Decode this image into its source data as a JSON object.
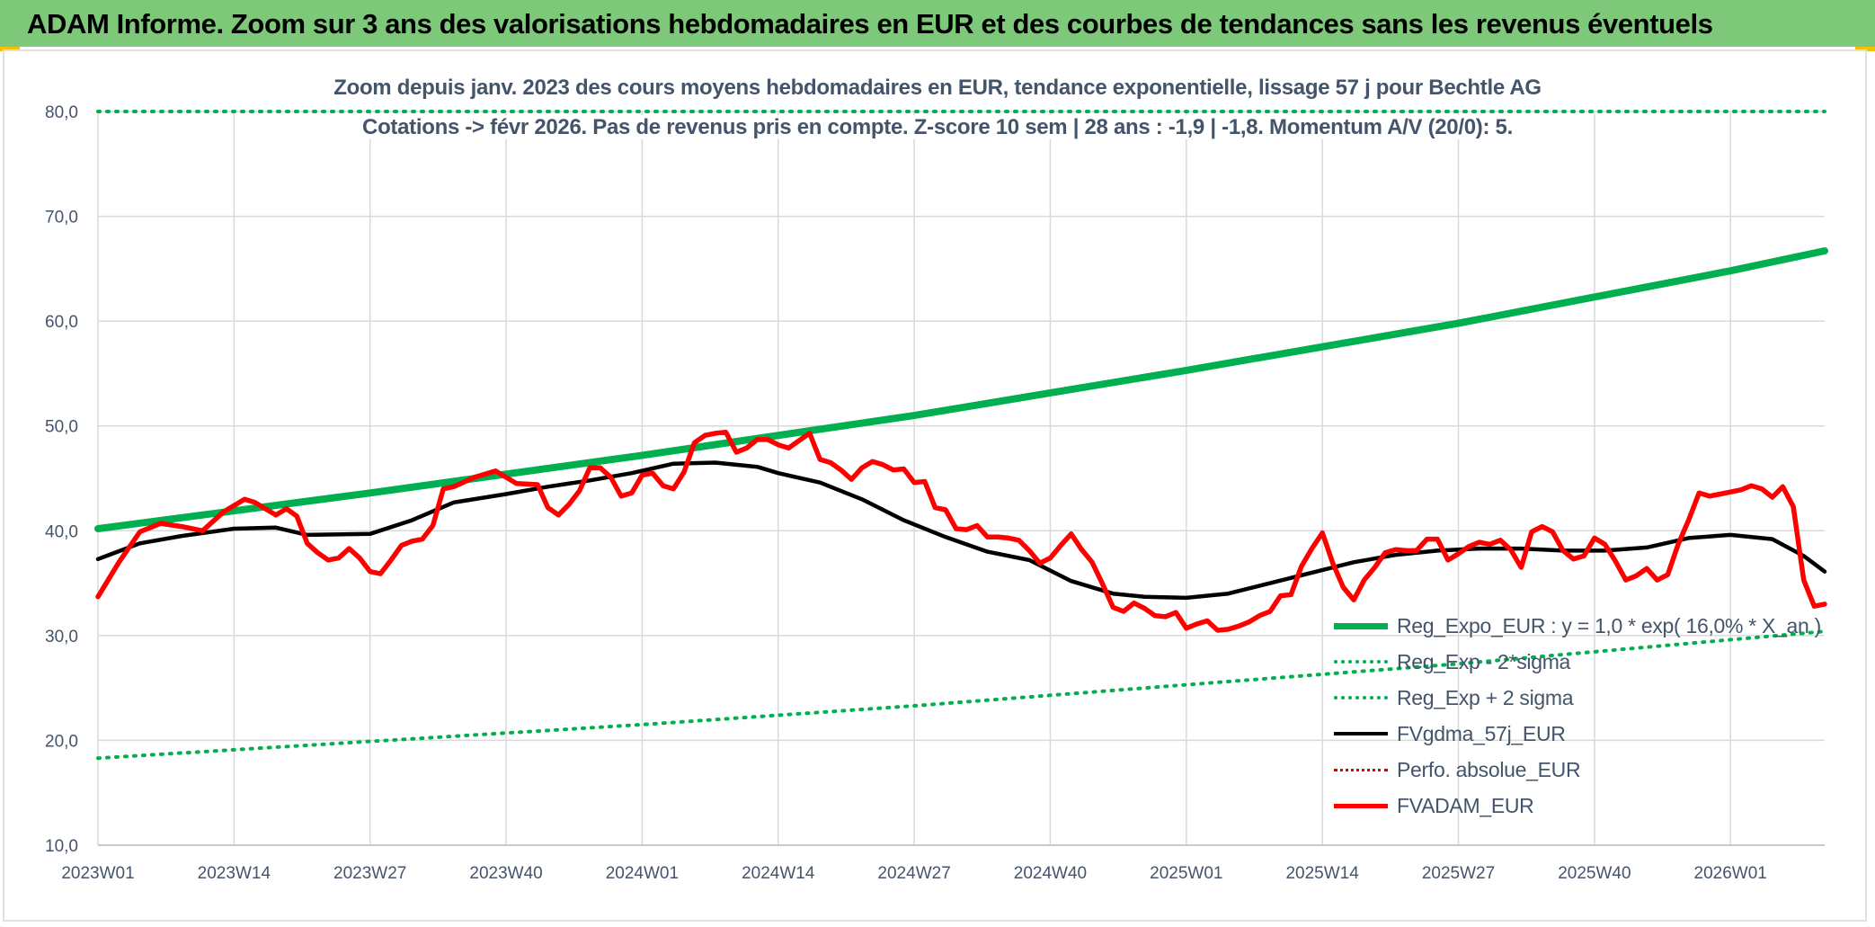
{
  "banner": {
    "title": "ADAM Informe. Zoom sur 3 ans des valorisations hebdomadaires en EUR et des courbes de tendances sans les revenus éventuels"
  },
  "colors": {
    "banner_bg": "#7ec87a",
    "reg_expo": "#00b050",
    "sigma_bands": "#00b050",
    "fvgdma": "#000000",
    "perfo": "#e00000",
    "fvadam": "#ff0000",
    "axis_text": "#44546a",
    "grid": "#d9d9d9"
  },
  "chart_data": {
    "type": "line",
    "title_lines": [
      "Zoom depuis janv. 2023 des cours moyens hebdomadaires en EUR, tendance exponentielle, lissage 57 j pour Bechtle AG",
      "Cotations -> févr 2026. Pas de revenus pris en compte. Z-score 10 sem | 28 ans : -1,9 | -1,8. Momentum A/V (20/0): 5."
    ],
    "xlabel": "",
    "ylabel": "",
    "ylim": [
      10,
      80
    ],
    "yticks": [
      "10,0",
      "20,0",
      "30,0",
      "40,0",
      "50,0",
      "60,0",
      "70,0",
      "80,0"
    ],
    "xticks": [
      "2023W01",
      "2023W14",
      "2023W27",
      "2023W40",
      "2024W01",
      "2024W14",
      "2024W27",
      "2024W40",
      "2025W01",
      "2025W14",
      "2025W27",
      "2025W40",
      "2026W01"
    ],
    "x_week_range": [
      0,
      165
    ],
    "grid": true,
    "legend_position": "bottom-right",
    "legend": [
      "Reg_Expo_EUR : y = 1,0 * exp( 16,0% *  X_an )",
      "Reg_Exp - 2*sigma",
      "Reg_Exp + 2 sigma",
      "FVgdma_57j_EUR",
      "Perfo. absolue_EUR",
      "FVADAM_EUR"
    ],
    "series": [
      {
        "name": "Reg_Expo_EUR : y = 1,0 * exp( 16,0% *  X_an )",
        "style": "solid-thick",
        "x": [
          0,
          26,
          52,
          78,
          104,
          130,
          156,
          165
        ],
        "values": [
          40.2,
          43.6,
          47.2,
          51.0,
          55.3,
          59.8,
          64.8,
          66.7
        ]
      },
      {
        "name": "Reg_Exp - 2*sigma",
        "style": "dotted",
        "x": [
          0,
          26,
          52,
          78,
          104,
          130,
          156,
          165
        ],
        "values": [
          18.3,
          19.9,
          21.5,
          23.3,
          25.3,
          27.3,
          29.6,
          30.4
        ]
      },
      {
        "name": "Reg_Exp + 2 sigma",
        "style": "dotted",
        "x": [
          0,
          165
        ],
        "values": [
          80.0,
          80.0
        ]
      },
      {
        "name": "FVgdma_57j_EUR",
        "style": "solid",
        "x": [
          0,
          4,
          8,
          13,
          17,
          20,
          26,
          30,
          34,
          39,
          43,
          47,
          51,
          55,
          59,
          63,
          65,
          69,
          73,
          77,
          81,
          85,
          89,
          93,
          97,
          100,
          104,
          108,
          112,
          116,
          120,
          124,
          128,
          132,
          136,
          140,
          144,
          148,
          152,
          156,
          160,
          163,
          165
        ],
        "values": [
          37.3,
          38.8,
          39.5,
          40.2,
          40.3,
          39.6,
          39.7,
          41.0,
          42.7,
          43.5,
          44.2,
          44.8,
          45.5,
          46.4,
          46.5,
          46.1,
          45.5,
          44.6,
          43.0,
          41.0,
          39.4,
          38.0,
          37.2,
          35.2,
          34.0,
          33.7,
          33.6,
          34.0,
          35.0,
          36.0,
          37.0,
          37.7,
          38.1,
          38.3,
          38.3,
          38.1,
          38.1,
          38.4,
          39.3,
          39.6,
          39.2,
          37.6,
          36.1
        ]
      },
      {
        "name": "Perfo. absolue_EUR",
        "style": "dotted",
        "x": [],
        "values": []
      },
      {
        "name": "FVADAM_EUR",
        "style": "solid-thick",
        "x": [
          0,
          2,
          4,
          6,
          8,
          10,
          12,
          14,
          15,
          17,
          18,
          19,
          20,
          21,
          22,
          23,
          24,
          25,
          26,
          27,
          28,
          29,
          30,
          31,
          32,
          33,
          34,
          36,
          38,
          40,
          42,
          43,
          44,
          45,
          46,
          47,
          48,
          49,
          50,
          51,
          52,
          53,
          54,
          55,
          56,
          57,
          58,
          59,
          60,
          61,
          62,
          63,
          64,
          65,
          66,
          67,
          68,
          69,
          70,
          71,
          72,
          73,
          74,
          75,
          76,
          77,
          78,
          79,
          80,
          81,
          82,
          83,
          84,
          85,
          86,
          87,
          88,
          89,
          90,
          91,
          92,
          93,
          94,
          95,
          96,
          97,
          98,
          99,
          100,
          101,
          102,
          103,
          104,
          105,
          106,
          107,
          108,
          109,
          110,
          111,
          112,
          113,
          114,
          115,
          116,
          117,
          118,
          119,
          120,
          121,
          122,
          123,
          124,
          125,
          126,
          127,
          128,
          129,
          130,
          131,
          132,
          133,
          134,
          135,
          136,
          137,
          138,
          139,
          140,
          141,
          142,
          143,
          144,
          145,
          146,
          147,
          148,
          149,
          150,
          151,
          152,
          153,
          154,
          155,
          156,
          157,
          158,
          159,
          160,
          161,
          162,
          163,
          164,
          165
        ],
        "values": [
          33.7,
          37.0,
          39.9,
          40.7,
          40.4,
          40.0,
          41.8,
          43.0,
          42.7,
          41.5,
          42.1,
          41.4,
          38.8,
          37.9,
          37.2,
          37.4,
          38.3,
          37.4,
          36.1,
          35.9,
          37.2,
          38.6,
          39.0,
          39.2,
          40.5,
          44.0,
          44.2,
          45.1,
          45.7,
          44.5,
          44.4,
          42.2,
          41.5,
          42.5,
          43.8,
          46.0,
          46.0,
          45.1,
          43.3,
          43.6,
          45.3,
          45.5,
          44.3,
          44.0,
          45.6,
          48.4,
          49.1,
          49.3,
          49.4,
          47.5,
          47.9,
          48.7,
          48.7,
          48.2,
          47.9,
          48.6,
          49.3,
          46.8,
          46.5,
          45.8,
          44.9,
          46.0,
          46.6,
          46.3,
          45.8,
          45.9,
          44.6,
          44.7,
          42.2,
          42.0,
          40.2,
          40.1,
          40.5,
          39.4,
          39.4,
          39.3,
          39.1,
          38.1,
          36.9,
          37.4,
          38.6,
          39.7,
          38.2,
          37.0,
          34.9,
          32.7,
          32.3,
          33.1,
          32.6,
          31.9,
          31.8,
          32.2,
          30.7,
          31.1,
          31.4,
          30.5,
          30.6,
          30.9,
          31.3,
          31.9,
          32.3,
          33.8,
          33.9,
          36.6,
          38.3,
          39.8,
          36.9,
          34.6,
          33.4,
          35.3,
          36.5,
          37.9,
          38.2,
          38.1,
          38.1,
          39.2,
          39.2,
          37.2,
          37.8,
          38.5,
          38.9,
          38.7,
          39.1,
          38.2,
          36.5,
          39.9,
          40.4,
          39.9,
          38.1,
          37.3,
          37.6,
          39.3,
          38.7,
          37.1,
          35.3,
          35.7,
          36.4,
          35.3,
          35.8,
          38.7,
          41.0,
          43.6,
          43.3,
          43.5,
          43.7,
          43.9,
          44.3,
          44.0,
          43.2,
          44.2,
          42.3,
          35.3,
          32.8,
          33.0
        ]
      }
    ]
  }
}
